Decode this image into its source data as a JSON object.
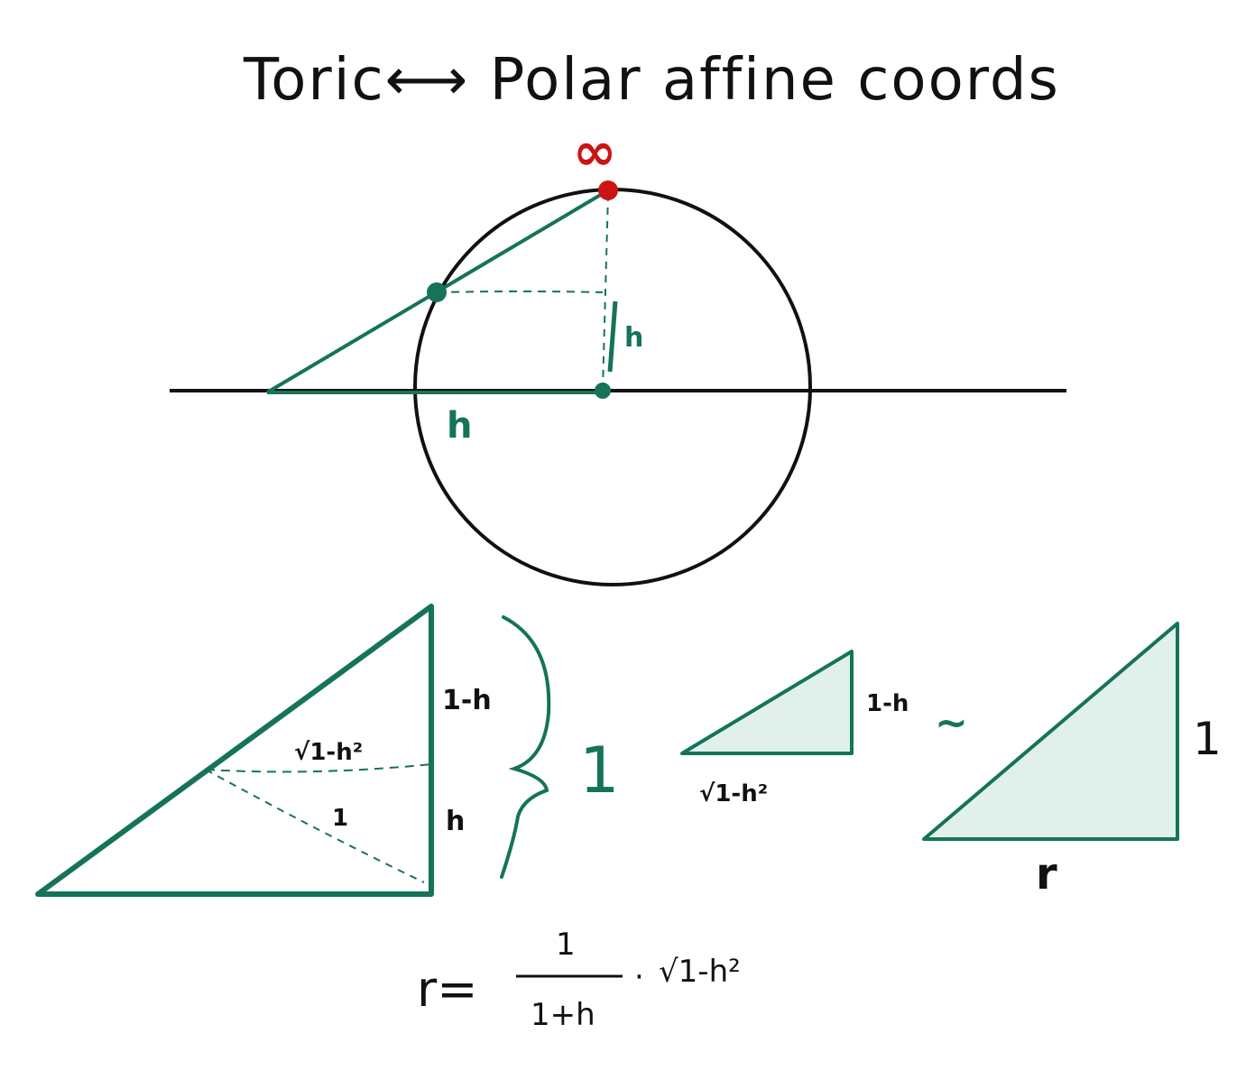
{
  "title": "Toric⟷ Polar affine coords",
  "infinity_symbol": "∞",
  "colors": {
    "ink": "#111111",
    "green": "#15735a",
    "red": "#cc1414",
    "fill": "#e2f0ec"
  },
  "top_diagram": {
    "height_label": "h",
    "base_label": "h"
  },
  "big_triangle": {
    "upper_label": "1-h",
    "lower_label": "h",
    "inner_label_sqrt": "√1-h²",
    "inner_label_one": "1",
    "brace_label": "1"
  },
  "small_triangle": {
    "side_label": "1-h",
    "base_label": "√1-h²"
  },
  "similar_symbol": "~",
  "right_triangle": {
    "side_label": "1",
    "base_label": "r"
  },
  "formula": {
    "lhs": "r=",
    "numerator": "1",
    "denominator": "1+h",
    "dot": "·",
    "sqrt": "√1-h²"
  }
}
